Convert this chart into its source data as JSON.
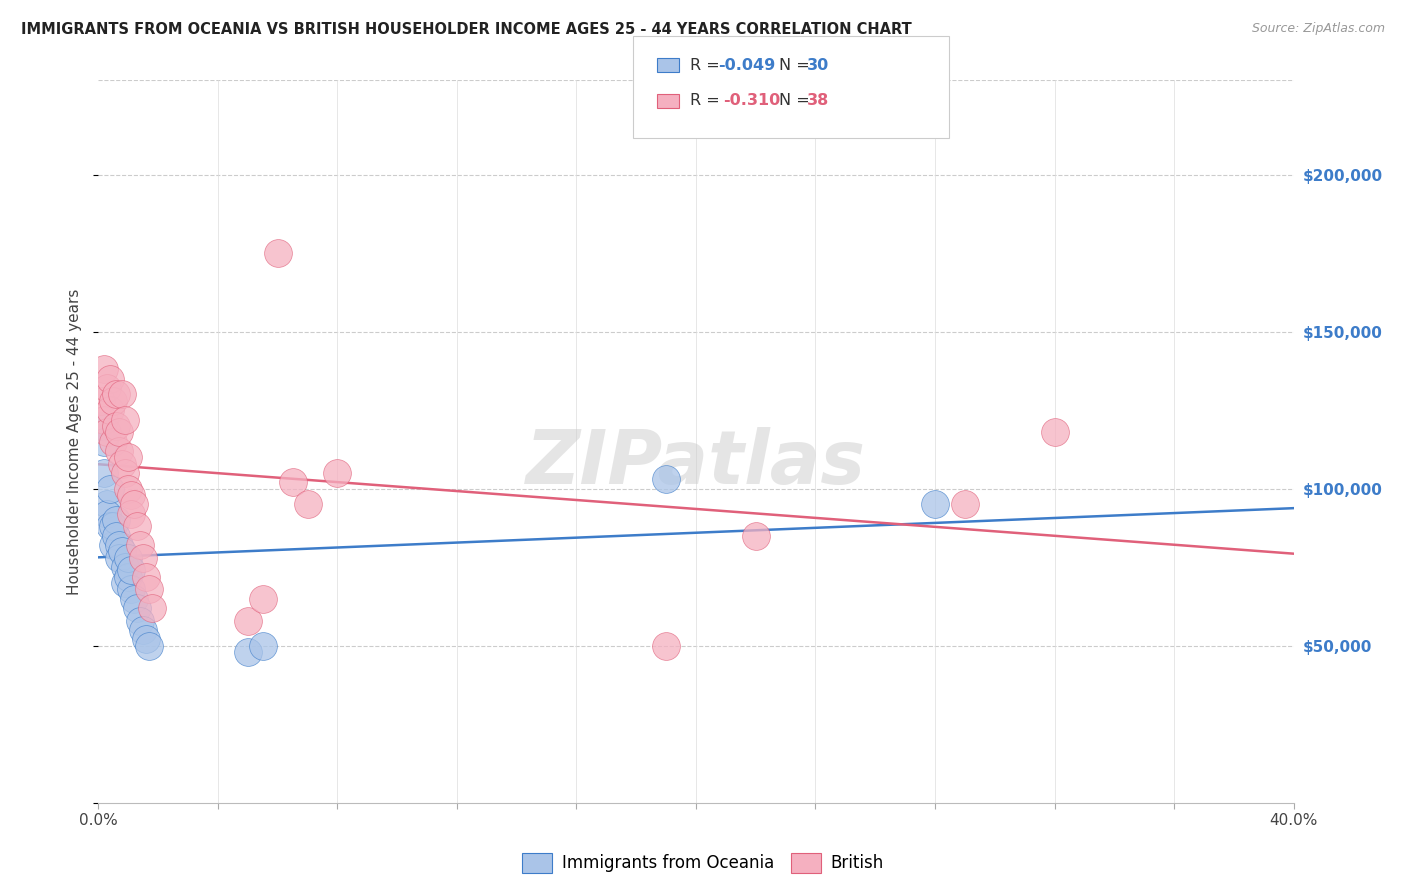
{
  "title": "IMMIGRANTS FROM OCEANIA VS BRITISH HOUSEHOLDER INCOME AGES 25 - 44 YEARS CORRELATION CHART",
  "source": "Source: ZipAtlas.com",
  "ylabel": "Householder Income Ages 25 - 44 years",
  "xlim": [
    0.0,
    0.4
  ],
  "ylim": [
    0,
    230000
  ],
  "xtick_positions": [
    0.0,
    0.04,
    0.08,
    0.12,
    0.16,
    0.2,
    0.24,
    0.28,
    0.32,
    0.36,
    0.4
  ],
  "xtick_labels": [
    "0.0%",
    "",
    "",
    "",
    "",
    "",
    "",
    "",
    "",
    "",
    "40.0%"
  ],
  "ytick_labels_right": [
    "$50,000",
    "$100,000",
    "$150,000",
    "$200,000"
  ],
  "ytick_values_right": [
    50000,
    100000,
    150000,
    200000
  ],
  "legend_label1": "Immigrants from Oceania",
  "legend_label2": "British",
  "R1": -0.049,
  "N1": 30,
  "R2": -0.31,
  "N2": 38,
  "color_oceania": "#aac4e8",
  "color_british": "#f5b0c0",
  "line_color_oceania": "#3d7cc9",
  "line_color_british": "#e0607a",
  "background_color": "#ffffff",
  "grid_color": "#cccccc",
  "title_color": "#222222",
  "source_color": "#999999",
  "oceania_x": [
    0.001,
    0.002,
    0.002,
    0.003,
    0.003,
    0.004,
    0.004,
    0.005,
    0.005,
    0.006,
    0.006,
    0.007,
    0.007,
    0.008,
    0.009,
    0.009,
    0.01,
    0.01,
    0.011,
    0.011,
    0.012,
    0.013,
    0.014,
    0.015,
    0.016,
    0.017,
    0.05,
    0.055,
    0.19,
    0.28
  ],
  "oceania_y": [
    120000,
    105000,
    115000,
    95000,
    92000,
    88000,
    100000,
    82000,
    88000,
    90000,
    85000,
    82000,
    78000,
    80000,
    75000,
    70000,
    72000,
    78000,
    68000,
    74000,
    65000,
    62000,
    58000,
    55000,
    52000,
    50000,
    48000,
    50000,
    103000,
    95000
  ],
  "british_x": [
    0.001,
    0.002,
    0.002,
    0.003,
    0.003,
    0.004,
    0.004,
    0.005,
    0.005,
    0.006,
    0.006,
    0.007,
    0.007,
    0.008,
    0.008,
    0.009,
    0.009,
    0.01,
    0.01,
    0.011,
    0.011,
    0.012,
    0.013,
    0.014,
    0.015,
    0.016,
    0.017,
    0.018,
    0.05,
    0.055,
    0.06,
    0.065,
    0.07,
    0.08,
    0.19,
    0.22,
    0.29,
    0.32
  ],
  "british_y": [
    128000,
    122000,
    138000,
    132000,
    118000,
    135000,
    125000,
    115000,
    128000,
    130000,
    120000,
    112000,
    118000,
    108000,
    130000,
    122000,
    105000,
    100000,
    110000,
    98000,
    92000,
    95000,
    88000,
    82000,
    78000,
    72000,
    68000,
    62000,
    58000,
    65000,
    175000,
    102000,
    95000,
    105000,
    50000,
    85000,
    95000,
    118000
  ],
  "watermark_text": "ZIPatlas",
  "watermark_color": "#cccccc",
  "watermark_alpha": 0.5
}
